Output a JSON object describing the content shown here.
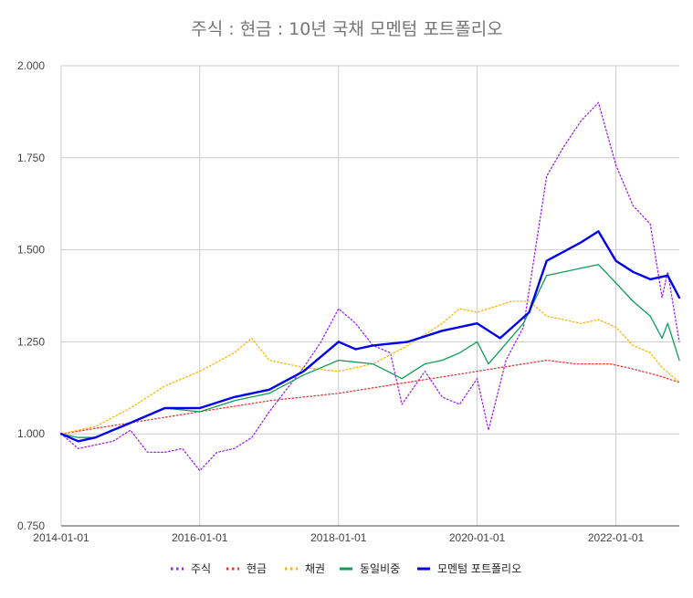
{
  "chart_data": {
    "type": "line",
    "title": "주식 : 현금 : 10년 국채 모멘텀 포트폴리오",
    "xlabel": "",
    "ylabel": "",
    "x_start": "2014-01-01",
    "x_end": "2022-12-01",
    "x_ticks": [
      {
        "label": "2014-01-01",
        "value": "2014-01-01"
      },
      {
        "label": "2016-01-01",
        "value": "2016-01-01"
      },
      {
        "label": "2018-01-01",
        "value": "2018-01-01"
      },
      {
        "label": "2020-01-01",
        "value": "2020-01-01"
      },
      {
        "label": "2022-01-01",
        "value": "2022-01-01"
      }
    ],
    "ylim": [
      0.75,
      2.0
    ],
    "y_ticks": [
      {
        "label": "0.750",
        "value": 0.75
      },
      {
        "label": "1.000",
        "value": 1.0
      },
      {
        "label": "1.250",
        "value": 1.25
      },
      {
        "label": "1.500",
        "value": 1.5
      },
      {
        "label": "1.750",
        "value": 1.75
      },
      {
        "label": "2.000",
        "value": 2.0
      }
    ],
    "grid": true,
    "legend_position": "bottom",
    "series": [
      {
        "name": "주식",
        "color": "#a020f0",
        "style": "dotted",
        "points": [
          [
            "2014-01-01",
            1.0
          ],
          [
            "2014-04-01",
            0.96
          ],
          [
            "2014-07-01",
            0.97
          ],
          [
            "2014-10-01",
            0.98
          ],
          [
            "2015-01-01",
            1.01
          ],
          [
            "2015-04-01",
            0.95
          ],
          [
            "2015-07-01",
            0.95
          ],
          [
            "2015-10-01",
            0.96
          ],
          [
            "2016-01-01",
            0.9
          ],
          [
            "2016-04-01",
            0.95
          ],
          [
            "2016-07-01",
            0.96
          ],
          [
            "2016-10-01",
            0.99
          ],
          [
            "2017-01-01",
            1.06
          ],
          [
            "2017-04-01",
            1.12
          ],
          [
            "2017-07-01",
            1.18
          ],
          [
            "2017-10-01",
            1.25
          ],
          [
            "2018-01-01",
            1.34
          ],
          [
            "2018-04-01",
            1.3
          ],
          [
            "2018-07-01",
            1.24
          ],
          [
            "2018-10-01",
            1.22
          ],
          [
            "2018-12-01",
            1.08
          ],
          [
            "2019-04-01",
            1.17
          ],
          [
            "2019-07-01",
            1.1
          ],
          [
            "2019-10-01",
            1.08
          ],
          [
            "2020-01-01",
            1.15
          ],
          [
            "2020-03-01",
            1.01
          ],
          [
            "2020-06-01",
            1.2
          ],
          [
            "2020-09-01",
            1.29
          ],
          [
            "2021-01-01",
            1.7
          ],
          [
            "2021-04-01",
            1.78
          ],
          [
            "2021-07-01",
            1.85
          ],
          [
            "2021-10-01",
            1.9
          ],
          [
            "2022-01-01",
            1.73
          ],
          [
            "2022-04-01",
            1.62
          ],
          [
            "2022-07-01",
            1.57
          ],
          [
            "2022-09-01",
            1.37
          ],
          [
            "2022-10-01",
            1.44
          ],
          [
            "2022-12-01",
            1.25
          ]
        ]
      },
      {
        "name": "현금",
        "color": "#e53935",
        "style": "dotted",
        "points": [
          [
            "2014-01-01",
            1.0
          ],
          [
            "2015-01-01",
            1.03
          ],
          [
            "2016-01-01",
            1.06
          ],
          [
            "2017-01-01",
            1.09
          ],
          [
            "2018-01-01",
            1.11
          ],
          [
            "2019-01-01",
            1.14
          ],
          [
            "2020-01-01",
            1.17
          ],
          [
            "2021-01-01",
            1.2
          ],
          [
            "2021-06-01",
            1.19
          ],
          [
            "2021-12-01",
            1.19
          ],
          [
            "2022-03-01",
            1.18
          ],
          [
            "2022-08-01",
            1.16
          ],
          [
            "2022-12-01",
            1.14
          ]
        ]
      },
      {
        "name": "채권",
        "color": "#ffb300",
        "style": "dotted",
        "points": [
          [
            "2014-01-01",
            1.0
          ],
          [
            "2014-07-01",
            1.02
          ],
          [
            "2015-01-01",
            1.07
          ],
          [
            "2015-07-01",
            1.13
          ],
          [
            "2016-01-01",
            1.17
          ],
          [
            "2016-07-01",
            1.22
          ],
          [
            "2016-10-01",
            1.26
          ],
          [
            "2017-01-01",
            1.2
          ],
          [
            "2017-07-01",
            1.18
          ],
          [
            "2018-01-01",
            1.17
          ],
          [
            "2018-07-01",
            1.19
          ],
          [
            "2019-01-01",
            1.24
          ],
          [
            "2019-07-01",
            1.3
          ],
          [
            "2019-10-01",
            1.34
          ],
          [
            "2020-01-01",
            1.33
          ],
          [
            "2020-07-01",
            1.36
          ],
          [
            "2020-10-01",
            1.36
          ],
          [
            "2021-01-01",
            1.32
          ],
          [
            "2021-07-01",
            1.3
          ],
          [
            "2021-10-01",
            1.31
          ],
          [
            "2022-01-01",
            1.29
          ],
          [
            "2022-04-01",
            1.24
          ],
          [
            "2022-07-01",
            1.22
          ],
          [
            "2022-09-01",
            1.18
          ],
          [
            "2022-12-01",
            1.14
          ]
        ]
      },
      {
        "name": "동일비중",
        "color": "#0f9d58",
        "style": "solid",
        "points": [
          [
            "2014-01-01",
            1.0
          ],
          [
            "2014-04-01",
            0.99
          ],
          [
            "2014-07-01",
            0.99
          ],
          [
            "2015-01-01",
            1.03
          ],
          [
            "2015-07-01",
            1.07
          ],
          [
            "2016-01-01",
            1.06
          ],
          [
            "2016-07-01",
            1.09
          ],
          [
            "2017-01-01",
            1.11
          ],
          [
            "2017-07-01",
            1.16
          ],
          [
            "2018-01-01",
            1.2
          ],
          [
            "2018-07-01",
            1.19
          ],
          [
            "2018-12-01",
            1.15
          ],
          [
            "2019-04-01",
            1.19
          ],
          [
            "2019-07-01",
            1.2
          ],
          [
            "2019-10-01",
            1.22
          ],
          [
            "2020-01-01",
            1.25
          ],
          [
            "2020-03-01",
            1.19
          ],
          [
            "2020-09-01",
            1.3
          ],
          [
            "2021-01-01",
            1.43
          ],
          [
            "2021-07-01",
            1.45
          ],
          [
            "2021-10-01",
            1.46
          ],
          [
            "2022-01-01",
            1.41
          ],
          [
            "2022-04-01",
            1.36
          ],
          [
            "2022-07-01",
            1.32
          ],
          [
            "2022-09-01",
            1.26
          ],
          [
            "2022-10-01",
            1.3
          ],
          [
            "2022-12-01",
            1.2
          ]
        ]
      },
      {
        "name": "모멘텀 포트폴리오",
        "color": "#0000ee",
        "style": "solid",
        "points": [
          [
            "2014-01-01",
            1.0
          ],
          [
            "2014-04-01",
            0.98
          ],
          [
            "2014-07-01",
            0.99
          ],
          [
            "2015-01-01",
            1.03
          ],
          [
            "2015-07-01",
            1.07
          ],
          [
            "2016-01-01",
            1.07
          ],
          [
            "2016-07-01",
            1.1
          ],
          [
            "2017-01-01",
            1.12
          ],
          [
            "2017-07-01",
            1.17
          ],
          [
            "2018-01-01",
            1.25
          ],
          [
            "2018-04-01",
            1.23
          ],
          [
            "2018-07-01",
            1.24
          ],
          [
            "2019-01-01",
            1.25
          ],
          [
            "2019-07-01",
            1.28
          ],
          [
            "2020-01-01",
            1.3
          ],
          [
            "2020-05-01",
            1.26
          ],
          [
            "2020-10-01",
            1.33
          ],
          [
            "2021-01-01",
            1.47
          ],
          [
            "2021-07-01",
            1.52
          ],
          [
            "2021-10-01",
            1.55
          ],
          [
            "2022-01-01",
            1.47
          ],
          [
            "2022-04-01",
            1.44
          ],
          [
            "2022-07-01",
            1.42
          ],
          [
            "2022-10-01",
            1.43
          ],
          [
            "2022-12-01",
            1.37
          ]
        ]
      }
    ]
  }
}
